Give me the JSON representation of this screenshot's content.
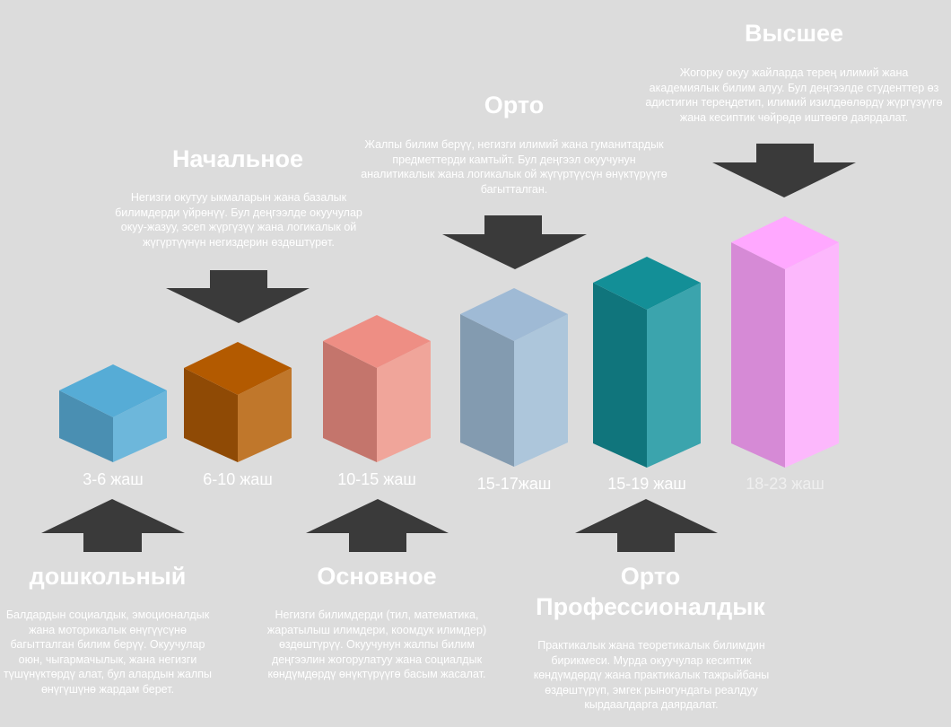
{
  "colors": {
    "background": "#dcdcdc",
    "arrow": "#3a3a3a",
    "text": "#ffffff"
  },
  "stages": [
    {
      "id": "preschool",
      "age": "3-6 жаш",
      "title": "дошкольный",
      "description": "Балдардын социалдык, эмоционалдык жана моторикалык өнүгүүсүнө багытталган билим берүү. Окуучулар оюн, чыгармачылык, жана негизги түшүнүктөрдү алат, бул алардын жалпы өнүгүшүнө жардам берет.",
      "colors": {
        "top": "#56acd6",
        "left": "#4a8fb2",
        "right": "#6db7db"
      }
    },
    {
      "id": "primary",
      "age": "6-10 жаш",
      "title": "Начальное",
      "description": "Негизги окутуу ыкмаларын жана базалык билимдерди үйрөнүү. Бул деңгээлде окуучулар окуу-жазуу, эсеп жүргүзүү жана логикалык ой жүгүртүүнүн негиздерин өздөштүрөт.",
      "colors": {
        "top": "#b35a00",
        "left": "#8f4a05",
        "right": "#c0772b"
      }
    },
    {
      "id": "basic",
      "age": "10-15 жаш",
      "title": "Основное",
      "description": "Негизги билимдерди (тил, математика, жаратылыш илимдери, коомдук илимдер) өздөштүрүү. Окуучунун жалпы билим деңгээлин жогорулатуу жана социалдык көндүмдөрдү өнүктүрүүгө басым жасалат.",
      "colors": {
        "top": "#ee8e84",
        "left": "#c4756c",
        "right": "#f0a59a"
      }
    },
    {
      "id": "secondary",
      "age": "15-17жаш",
      "title": "Орто",
      "description": "Жалпы билим берүү, негизги илимий жана гуманитардык предметтерди камтыйт. Бул деңгээл окуучунун аналитикалык жана логикалык ой жүгүртүүсүн өнүктүрүүгө багытталган.",
      "colors": {
        "top": "#9fbad5",
        "left": "#839bb0",
        "right": "#adc6db"
      }
    },
    {
      "id": "vocational",
      "age": "15-19 жаш",
      "title": "Орто Профессионалдык",
      "description": "Практикалык жана теоретикалык билимдин бирикмеси. Мурда окуучулар кесиптик көндүмдөрдү жана практикалык тажрыйбаны өздөштүрүп, эмгек рыногундагы реалдуу кырдаалдарга даярдалат.",
      "colors": {
        "top": "#138f97",
        "left": "#10757c",
        "right": "#3ba4ad"
      }
    },
    {
      "id": "higher",
      "age": "18-23 жаш",
      "title": "Высшее",
      "description": "Жогорку окуу жайларда терең илимий жана академиялык билим алуу. Бул деңгээлде студенттер өз адистигин тереңдетип, илимий изилдөөлөрдү жүргүзүүгө жана кесиптик чөйрөдө иштөөгө даярдалат.",
      "colors": {
        "top": "#ffa8ff",
        "left": "#d68ad6",
        "right": "#fcb8fc"
      }
    }
  ]
}
